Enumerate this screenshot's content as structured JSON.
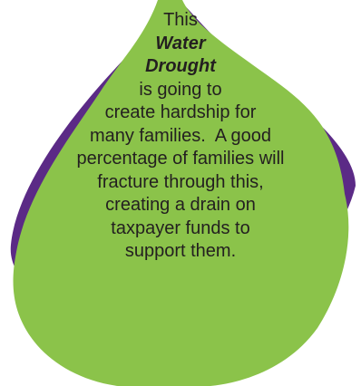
{
  "colors": {
    "drop_fill": "#8bc34a",
    "drop_shadow": "#5b2a86",
    "background": "#ffffff",
    "text": "#231f20"
  },
  "icon": "water-drop-icon",
  "text_lines": [
    "This",
    "Water",
    "Drought",
    "is going to",
    "create hardship for",
    "many families.  A good",
    "percentage of families will",
    "fracture through this,",
    "creating a drain on",
    "taxpayer funds to",
    "support them."
  ]
}
